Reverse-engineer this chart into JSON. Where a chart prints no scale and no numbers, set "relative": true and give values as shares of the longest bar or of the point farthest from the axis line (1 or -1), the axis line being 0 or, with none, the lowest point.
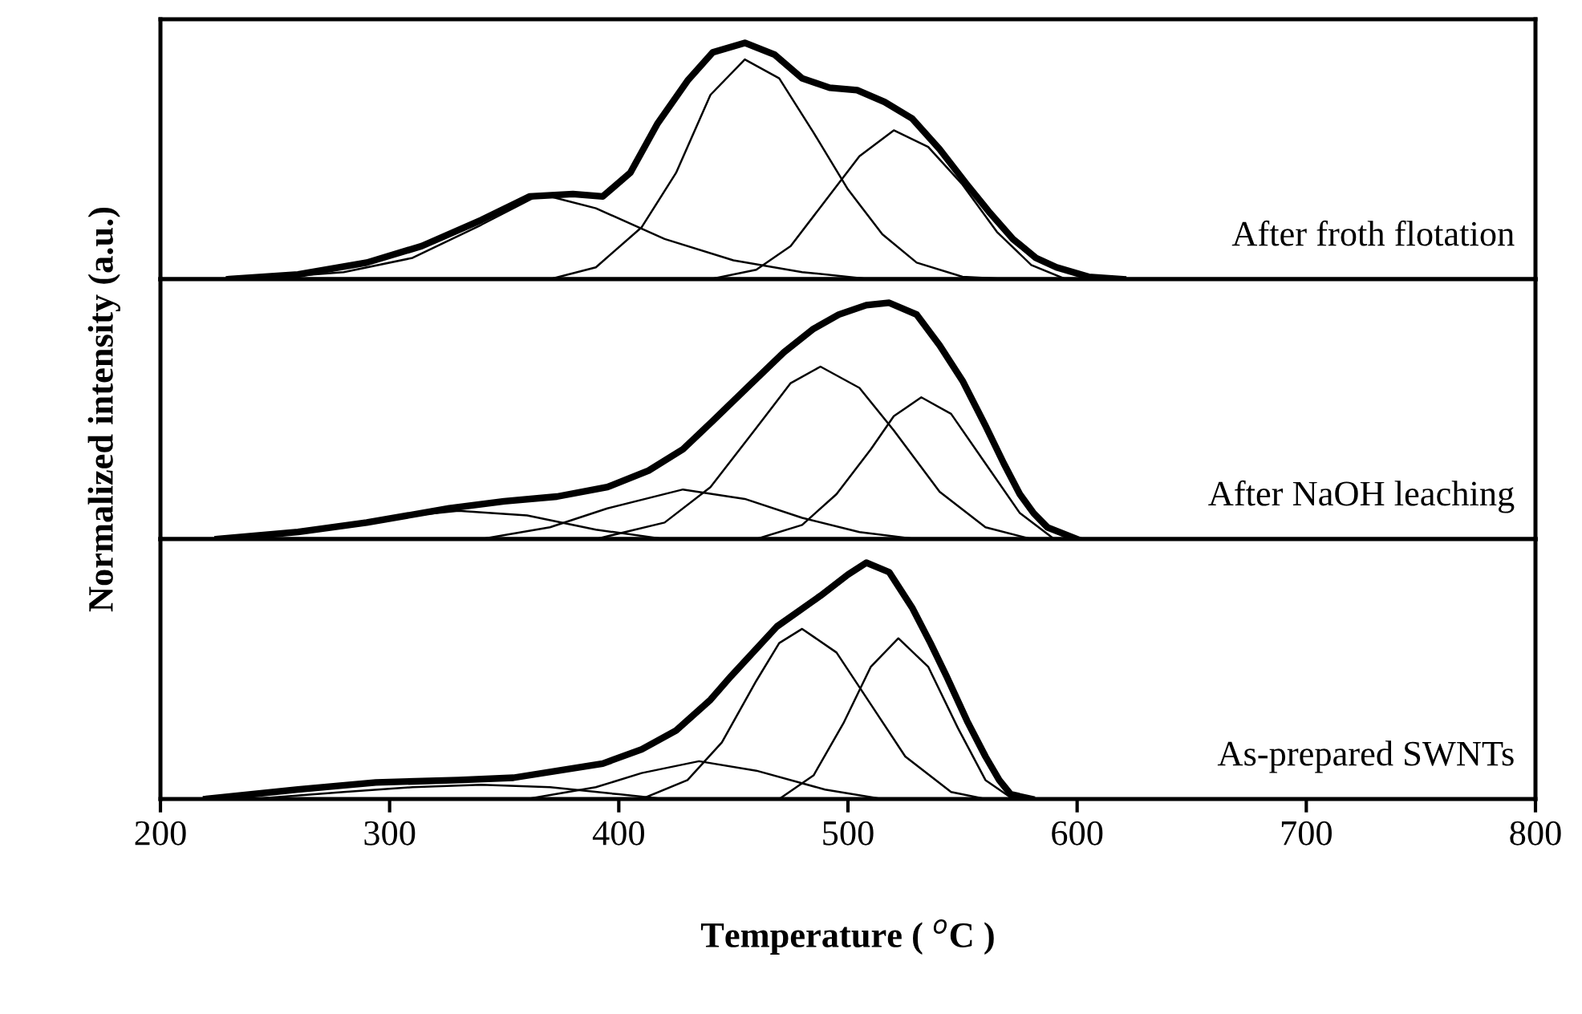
{
  "chart_data": [
    {
      "type": "line",
      "relative": true,
      "xlim": [
        200,
        800
      ],
      "xticks": [
        200,
        300,
        400,
        500,
        600,
        700,
        800
      ],
      "tick_labels": false,
      "grid": false,
      "legend": false,
      "annotations": [
        "After froth flotation"
      ],
      "series": [
        {
          "color": "#000000",
          "x": [
            230,
            260,
            290,
            314,
            340,
            361,
            380,
            393,
            405,
            417,
            430,
            441,
            455,
            468,
            480,
            492,
            504,
            516,
            528,
            540,
            552,
            562,
            572,
            582,
            591,
            605,
            620
          ],
          "values": [
            0,
            0.02,
            0.07,
            0.14,
            0.25,
            0.35,
            0.36,
            0.35,
            0.45,
            0.66,
            0.84,
            0.96,
            1.0,
            0.95,
            0.85,
            0.81,
            0.8,
            0.75,
            0.68,
            0.55,
            0.4,
            0.28,
            0.17,
            0.09,
            0.05,
            0.01,
            0
          ]
        },
        {
          "color": "#000000",
          "x": [
            240,
            280,
            310,
            340,
            366,
            390,
            420,
            450,
            480,
            510
          ],
          "values": [
            0,
            0.03,
            0.09,
            0.23,
            0.36,
            0.3,
            0.17,
            0.08,
            0.03,
            0
          ]
        },
        {
          "color": "#000000",
          "x": [
            370,
            390,
            410,
            425,
            440,
            455,
            470,
            485,
            500,
            515,
            530,
            550,
            570
          ],
          "values": [
            0,
            0.05,
            0.22,
            0.45,
            0.78,
            0.93,
            0.85,
            0.62,
            0.38,
            0.19,
            0.07,
            0.01,
            0
          ]
        },
        {
          "color": "#000000",
          "x": [
            440,
            460,
            475,
            490,
            505,
            520,
            535,
            550,
            565,
            580,
            595
          ],
          "values": [
            0,
            0.04,
            0.14,
            0.33,
            0.52,
            0.63,
            0.56,
            0.4,
            0.2,
            0.06,
            0
          ]
        }
      ]
    },
    {
      "type": "line",
      "relative": true,
      "xlim": [
        200,
        800
      ],
      "xticks": [
        200,
        300,
        400,
        500,
        600,
        700,
        800
      ],
      "tick_labels": false,
      "grid": false,
      "legend": false,
      "ylabel": "Normalized intensity (a.u.)",
      "annotations": [
        "After NaOH leaching"
      ],
      "series": [
        {
          "color": "#000000",
          "x": [
            225,
            260,
            290,
            326,
            350,
            373,
            395,
            413,
            428,
            441,
            457,
            472,
            485,
            496,
            508,
            518,
            530,
            540,
            550,
            560,
            568,
            575,
            581,
            587,
            600
          ],
          "values": [
            0,
            0.03,
            0.07,
            0.13,
            0.16,
            0.18,
            0.22,
            0.29,
            0.38,
            0.5,
            0.65,
            0.79,
            0.89,
            0.95,
            0.99,
            1.0,
            0.95,
            0.82,
            0.67,
            0.48,
            0.32,
            0.19,
            0.11,
            0.05,
            0
          ]
        },
        {
          "color": "#000000",
          "x": [
            230,
            270,
            300,
            330,
            360,
            390,
            420
          ],
          "values": [
            0,
            0.04,
            0.09,
            0.12,
            0.1,
            0.04,
            0
          ]
        },
        {
          "color": "#000000",
          "x": [
            340,
            370,
            395,
            428,
            455,
            480,
            505,
            530
          ],
          "values": [
            0,
            0.05,
            0.13,
            0.21,
            0.17,
            0.09,
            0.03,
            0
          ]
        },
        {
          "color": "#000000",
          "x": [
            390,
            420,
            440,
            460,
            475,
            488,
            505,
            520,
            540,
            560,
            580
          ],
          "values": [
            0,
            0.07,
            0.22,
            0.47,
            0.66,
            0.73,
            0.64,
            0.46,
            0.2,
            0.05,
            0
          ]
        },
        {
          "color": "#000000",
          "x": [
            460,
            480,
            495,
            510,
            520,
            532,
            545,
            560,
            575,
            590
          ],
          "values": [
            0,
            0.06,
            0.19,
            0.38,
            0.52,
            0.6,
            0.53,
            0.32,
            0.11,
            0
          ]
        }
      ]
    },
    {
      "type": "line",
      "relative": true,
      "xlim": [
        200,
        800
      ],
      "xticks": [
        200,
        300,
        400,
        500,
        600,
        700,
        800
      ],
      "tick_labels": "x",
      "grid": false,
      "legend": false,
      "xlabel": "Temperature ( $^{o}$C )",
      "annotations": [
        "As-prepared SWNTs"
      ],
      "series": [
        {
          "color": "#000000",
          "x": [
            220,
            260,
            294,
            330,
            354,
            393,
            410,
            425,
            440,
            449,
            469,
            488,
            500,
            508,
            518,
            528,
            536,
            543,
            552,
            560,
            566,
            571,
            580
          ],
          "values": [
            0,
            0.04,
            0.07,
            0.08,
            0.09,
            0.15,
            0.21,
            0.29,
            0.42,
            0.52,
            0.73,
            0.86,
            0.95,
            1.0,
            0.96,
            0.81,
            0.66,
            0.52,
            0.33,
            0.18,
            0.08,
            0.02,
            0
          ]
        },
        {
          "color": "#000000",
          "x": [
            240,
            280,
            310,
            340,
            370,
            400,
            420
          ],
          "values": [
            0,
            0.03,
            0.05,
            0.06,
            0.05,
            0.02,
            0
          ]
        },
        {
          "color": "#000000",
          "x": [
            360,
            390,
            410,
            435,
            460,
            490,
            515
          ],
          "values": [
            0,
            0.05,
            0.11,
            0.16,
            0.12,
            0.04,
            0
          ]
        },
        {
          "color": "#000000",
          "x": [
            410,
            430,
            445,
            460,
            470,
            480,
            495,
            510,
            525,
            545,
            560
          ],
          "values": [
            0,
            0.08,
            0.24,
            0.5,
            0.66,
            0.72,
            0.62,
            0.4,
            0.18,
            0.03,
            0
          ]
        },
        {
          "color": "#000000",
          "x": [
            470,
            485,
            498,
            510,
            522,
            535,
            548,
            560,
            572
          ],
          "values": [
            0,
            0.1,
            0.32,
            0.56,
            0.68,
            0.56,
            0.3,
            0.08,
            0
          ]
        }
      ]
    }
  ]
}
